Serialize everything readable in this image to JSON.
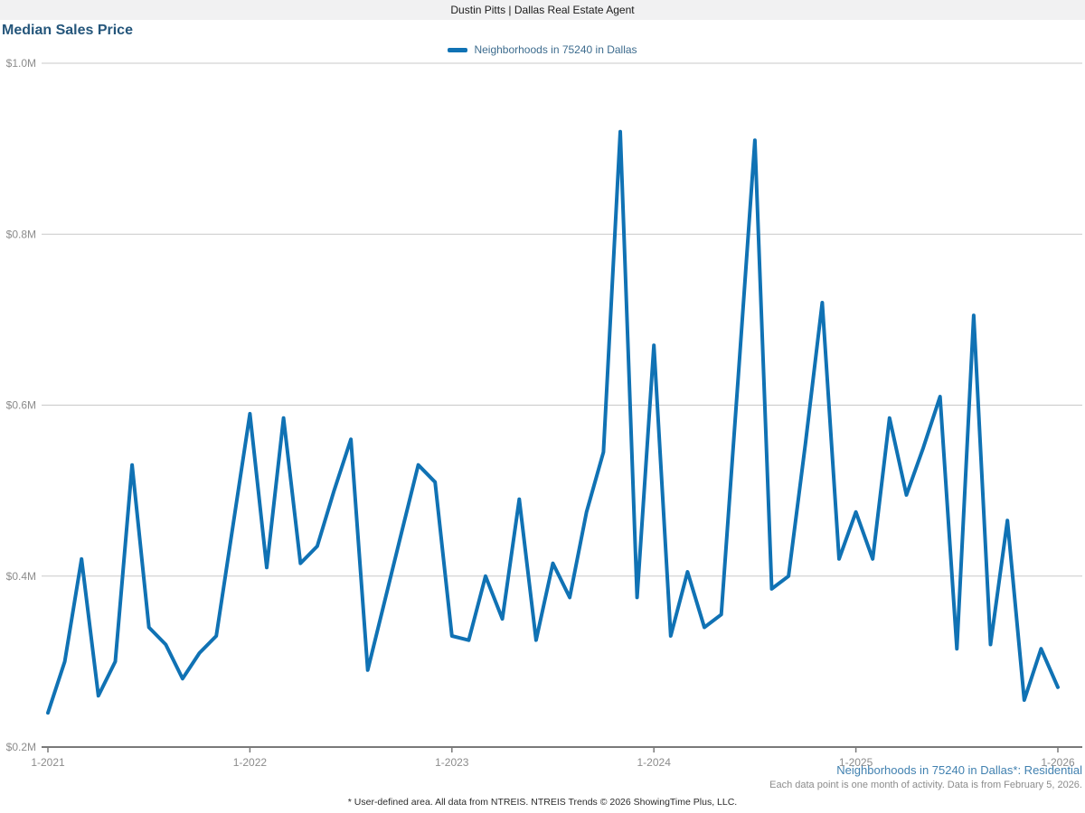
{
  "header": {
    "title": "Dustin Pitts | Dallas Real Estate Agent"
  },
  "chart": {
    "title": "Median Sales Price",
    "legend_label": "Neighborhoods in 75240 in Dallas"
  },
  "footnotes": {
    "series_caption": "Neighborhoods in 75240 in Dallas*: Residential",
    "data_note": "Each data point is one month of activity. Data is from February 5, 2026.",
    "disclaimer": "* User-defined area. All data from NTREIS. NTREIS Trends © 2026 ShowingTime Plus, LLC."
  },
  "colors": {
    "line": "#1072b4",
    "title": "#25567b",
    "legend_text": "#3d6c8e",
    "caption": "#4181b0",
    "muted": "#8c8c8c",
    "grid": "#c9c9c9",
    "axis": "#7a7a7a",
    "header_bg": "#f1f1f2",
    "header_text": "#1a1a1a",
    "disclaimer": "#2b2b2b"
  },
  "chart_data": {
    "type": "line",
    "title": "Median Sales Price",
    "series_name": "Neighborhoods in 75240 in Dallas",
    "unit": "USD millions",
    "interval": "monthly",
    "start_month": "1-2021",
    "end_month": "1-2026",
    "legend_position": "top-center",
    "grid": "horizontal-only",
    "y_range": [
      0.2,
      1.0
    ],
    "y_ticks": [
      {
        "label": "$0.2M",
        "value": 0.2
      },
      {
        "label": "$0.4M",
        "value": 0.4
      },
      {
        "label": "$0.6M",
        "value": 0.6
      },
      {
        "label": "$0.8M",
        "value": 0.8
      },
      {
        "label": "$1.0M",
        "value": 1.0
      }
    ],
    "x_ticks": [
      {
        "label": "1-2021",
        "month_index": 0
      },
      {
        "label": "1-2022",
        "month_index": 12
      },
      {
        "label": "1-2023",
        "month_index": 24
      },
      {
        "label": "1-2024",
        "month_index": 36
      },
      {
        "label": "1-2025",
        "month_index": 48
      },
      {
        "label": "1-2026",
        "month_index": 60
      }
    ],
    "values": [
      0.24,
      0.3,
      0.42,
      0.26,
      0.3,
      0.53,
      0.34,
      0.32,
      0.28,
      0.31,
      0.33,
      0.46,
      0.59,
      0.41,
      0.585,
      0.415,
      0.435,
      0.5,
      0.56,
      0.29,
      0.37,
      0.45,
      0.53,
      0.51,
      0.33,
      0.325,
      0.4,
      0.35,
      0.49,
      0.325,
      0.415,
      0.375,
      0.475,
      0.545,
      0.92,
      0.375,
      0.67,
      0.33,
      0.405,
      0.34,
      0.355,
      0.63,
      0.91,
      0.385,
      0.4,
      0.555,
      0.72,
      0.42,
      0.475,
      0.42,
      0.585,
      0.495,
      0.55,
      0.61,
      0.315,
      0.705,
      0.32,
      0.465,
      0.255,
      0.315,
      0.27
    ]
  }
}
